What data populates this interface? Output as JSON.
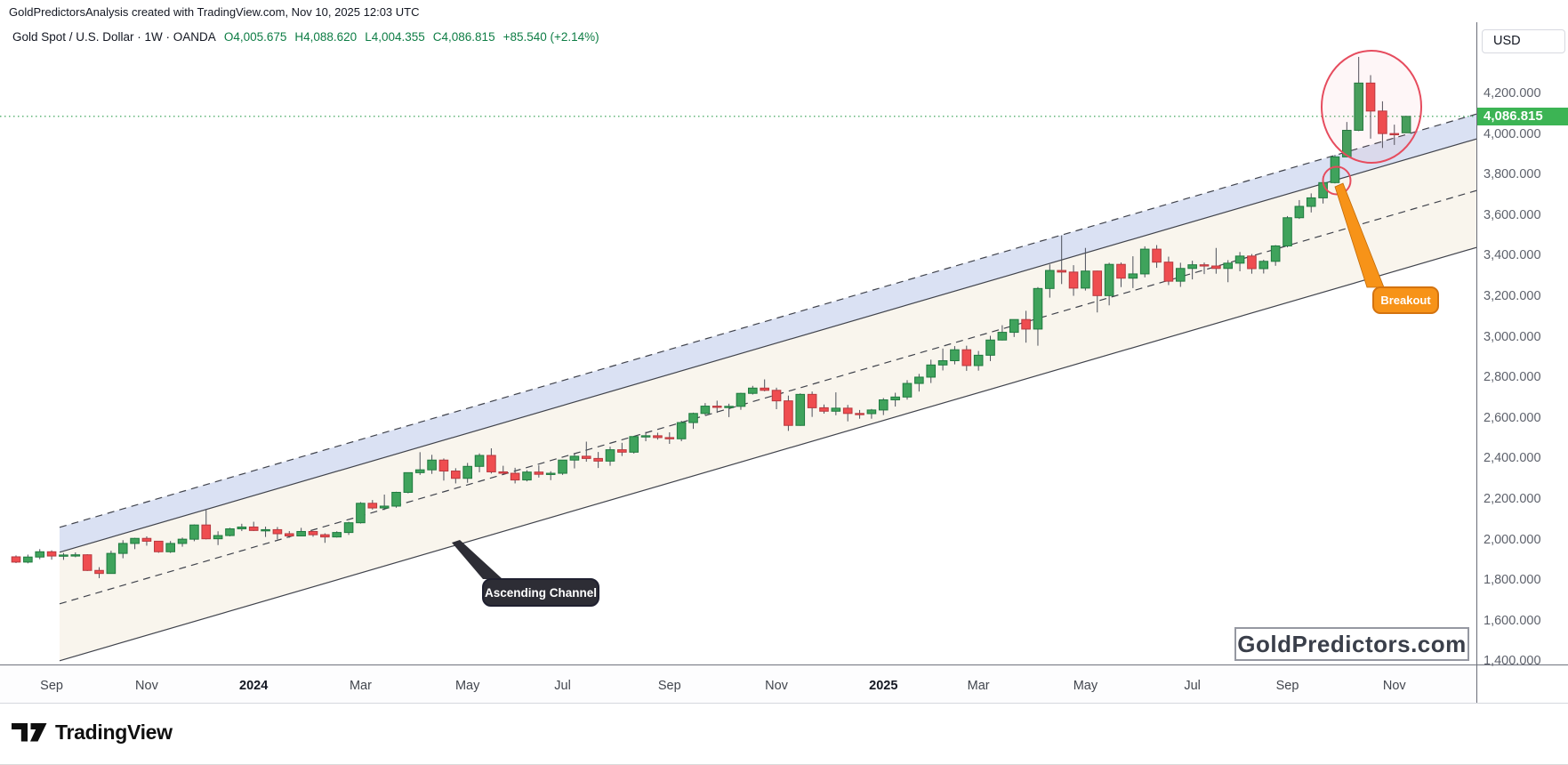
{
  "attribution": "GoldPredictorsAnalysis created with TradingView.com, Nov 10, 2025 12:03 UTC",
  "legend": {
    "symbol_line": "Gold Spot / U.S. Dollar · 1W · OANDA",
    "open": "O4,005.675",
    "high": "H4,088.620",
    "low": "L4,004.355",
    "close": "C4,086.815",
    "change": "+85.540 (+2.14%)"
  },
  "price_pane": {
    "currency_button": "USD",
    "last_price_label": "4,086.815",
    "last_price_color": "#3cb454",
    "labels": [
      "4,200.000",
      "4,000.000",
      "3,800.000",
      "3,600.000",
      "3,400.000",
      "3,200.000",
      "3,000.000",
      "2,800.000",
      "2,600.000",
      "2,400.000",
      "2,200.000",
      "2,000.000",
      "1,800.000",
      "1,600.000",
      "1,400.000"
    ]
  },
  "annotations": {
    "breakout_label": "Breakout",
    "ascending_label": "Ascending Channel",
    "watermark": "GoldPredictors.com",
    "circle_color": "#e64c5e",
    "callout_orange": "#f79318",
    "callout_dark": "#2d2d35"
  },
  "footer": {
    "brand": "TradingView"
  },
  "chart_data": {
    "type": "candlestick",
    "title": "Gold Spot / U.S. Dollar",
    "interval": "1W",
    "exchange": "OANDA",
    "currency": "USD",
    "note": "weekly candles, mid-Aug 2023 to Nov 10 2025, format [open,high,low,close] USD/oz",
    "current": {
      "open": 4005.675,
      "high": 4088.62,
      "low": 4004.355,
      "close": 4086.815,
      "change": 85.54,
      "change_pct": 2.14
    },
    "up_color": "#3fa35c",
    "up_border": "#1f7a3f",
    "down_color": "#ef4d50",
    "down_border": "#b8383f",
    "wick_color": "#4c505a",
    "dotted_price_line": {
      "price": 4086.815,
      "color": "#2f9e4f"
    },
    "price_axis": {
      "min": 1400,
      "max": 4200,
      "step": 200
    },
    "time_axis_labels": [
      {
        "label": "Sep",
        "candle_index": 3,
        "bold": false
      },
      {
        "label": "Nov",
        "candle_index": 11,
        "bold": false
      },
      {
        "label": "2024",
        "candle_index": 20,
        "bold": true
      },
      {
        "label": "Mar",
        "candle_index": 29,
        "bold": false
      },
      {
        "label": "May",
        "candle_index": 38,
        "bold": false
      },
      {
        "label": "Jul",
        "candle_index": 46,
        "bold": false
      },
      {
        "label": "Sep",
        "candle_index": 55,
        "bold": false
      },
      {
        "label": "Nov",
        "candle_index": 64,
        "bold": false
      },
      {
        "label": "2025",
        "candle_index": 73,
        "bold": true
      },
      {
        "label": "Mar",
        "candle_index": 81,
        "bold": false
      },
      {
        "label": "May",
        "candle_index": 90,
        "bold": false
      },
      {
        "label": "Jul",
        "candle_index": 99,
        "bold": false
      },
      {
        "label": "Sep",
        "candle_index": 107,
        "bold": false
      },
      {
        "label": "Nov",
        "candle_index": 116,
        "bold": false
      }
    ],
    "trend_channel": {
      "fill_interior": "rgba(241,232,214,0.45)",
      "fill_band": "rgba(173,189,229,0.45)",
      "line_color": "#40434c",
      "lines": [
        {
          "name": "upper-dashed",
          "style": "dashed",
          "p_start": 2060.5,
          "p_end": 4098.2
        },
        {
          "name": "upper-solid",
          "style": "solid",
          "p_start": 1937.7,
          "p_end": 3975.4
        },
        {
          "name": "mid-dashed",
          "style": "dashed",
          "p_start": 1683.3,
          "p_end": 3721.0
        },
        {
          "name": "lower-solid",
          "style": "solid",
          "p_start": 1402.6,
          "p_end": 3440.3
        }
      ]
    },
    "candles": [
      [
        1915,
        1922,
        1884,
        1889
      ],
      [
        1889,
        1926,
        1883,
        1914
      ],
      [
        1914,
        1953,
        1903,
        1940
      ],
      [
        1940,
        1947,
        1901,
        1919
      ],
      [
        1919,
        1934,
        1900,
        1924
      ],
      [
        1924,
        1937,
        1913,
        1925
      ],
      [
        1925,
        1928,
        1845,
        1848
      ],
      [
        1848,
        1864,
        1810,
        1833
      ],
      [
        1833,
        1945,
        1832,
        1932
      ],
      [
        1932,
        1997,
        1908,
        1981
      ],
      [
        1981,
        2009,
        1953,
        2006
      ],
      [
        2006,
        2016,
        1970,
        1992
      ],
      [
        1992,
        1993,
        1935,
        1940
      ],
      [
        1940,
        1993,
        1934,
        1981
      ],
      [
        1981,
        2010,
        1965,
        2002
      ],
      [
        2002,
        2075,
        1992,
        2072
      ],
      [
        2072,
        2146,
        2001,
        2004
      ],
      [
        2004,
        2041,
        1973,
        2020
      ],
      [
        2020,
        2058,
        2016,
        2053
      ],
      [
        2053,
        2078,
        2042,
        2062
      ],
      [
        2062,
        2088,
        2042,
        2045
      ],
      [
        2045,
        2064,
        2013,
        2049
      ],
      [
        2049,
        2062,
        2001,
        2029
      ],
      [
        2029,
        2042,
        2009,
        2018
      ],
      [
        2018,
        2058,
        2016,
        2040
      ],
      [
        2040,
        2042,
        2014,
        2024
      ],
      [
        2024,
        2031,
        1984,
        2013
      ],
      [
        2013,
        2041,
        2010,
        2035
      ],
      [
        2035,
        2088,
        2023,
        2083
      ],
      [
        2083,
        2185,
        2079,
        2179
      ],
      [
        2179,
        2195,
        2148,
        2156
      ],
      [
        2156,
        2222,
        2146,
        2165
      ],
      [
        2165,
        2236,
        2157,
        2233
      ],
      [
        2233,
        2331,
        2228,
        2330
      ],
      [
        2330,
        2431,
        2319,
        2344
      ],
      [
        2344,
        2418,
        2324,
        2392
      ],
      [
        2392,
        2400,
        2291,
        2338
      ],
      [
        2338,
        2352,
        2277,
        2302
      ],
      [
        2302,
        2378,
        2280,
        2361
      ],
      [
        2361,
        2425,
        2332,
        2415
      ],
      [
        2415,
        2450,
        2326,
        2334
      ],
      [
        2334,
        2364,
        2322,
        2327
      ],
      [
        2327,
        2354,
        2277,
        2294
      ],
      [
        2294,
        2342,
        2287,
        2333
      ],
      [
        2333,
        2366,
        2306,
        2322
      ],
      [
        2322,
        2337,
        2293,
        2327
      ],
      [
        2327,
        2393,
        2319,
        2392
      ],
      [
        2392,
        2424,
        2351,
        2411
      ],
      [
        2411,
        2483,
        2384,
        2400
      ],
      [
        2400,
        2432,
        2353,
        2387
      ],
      [
        2387,
        2458,
        2364,
        2443
      ],
      [
        2443,
        2477,
        2412,
        2431
      ],
      [
        2431,
        2510,
        2424,
        2508
      ],
      [
        2508,
        2531,
        2485,
        2512
      ],
      [
        2512,
        2527,
        2493,
        2503
      ],
      [
        2503,
        2529,
        2472,
        2497
      ],
      [
        2497,
        2586,
        2485,
        2577
      ],
      [
        2577,
        2626,
        2546,
        2622
      ],
      [
        2622,
        2673,
        2614,
        2658
      ],
      [
        2658,
        2685,
        2625,
        2654
      ],
      [
        2654,
        2670,
        2604,
        2657
      ],
      [
        2657,
        2724,
        2640,
        2721
      ],
      [
        2721,
        2758,
        2715,
        2747
      ],
      [
        2747,
        2790,
        2731,
        2736
      ],
      [
        2736,
        2749,
        2643,
        2684
      ],
      [
        2684,
        2710,
        2536,
        2563
      ],
      [
        2563,
        2721,
        2561,
        2716
      ],
      [
        2716,
        2730,
        2605,
        2650
      ],
      [
        2650,
        2666,
        2621,
        2633
      ],
      [
        2633,
        2726,
        2613,
        2648
      ],
      [
        2648,
        2664,
        2583,
        2622
      ],
      [
        2622,
        2639,
        2596,
        2621
      ],
      [
        2621,
        2644,
        2596,
        2639
      ],
      [
        2639,
        2698,
        2614,
        2689
      ],
      [
        2689,
        2724,
        2656,
        2703
      ],
      [
        2703,
        2786,
        2690,
        2770
      ],
      [
        2770,
        2817,
        2730,
        2801
      ],
      [
        2801,
        2887,
        2772,
        2861
      ],
      [
        2861,
        2942,
        2834,
        2882
      ],
      [
        2882,
        2954,
        2864,
        2936
      ],
      [
        2936,
        2956,
        2832,
        2858
      ],
      [
        2858,
        2930,
        2833,
        2909
      ],
      [
        2909,
        3005,
        2880,
        2984
      ],
      [
        2984,
        3057,
        2982,
        3022
      ],
      [
        3022,
        3086,
        2999,
        3085
      ],
      [
        3085,
        3128,
        2971,
        3038
      ],
      [
        3038,
        3245,
        2956,
        3238
      ],
      [
        3238,
        3357,
        3193,
        3327
      ],
      [
        3327,
        3500,
        3260,
        3319
      ],
      [
        3319,
        3353,
        3202,
        3240
      ],
      [
        3240,
        3438,
        3228,
        3324
      ],
      [
        3324,
        3326,
        3120,
        3203
      ],
      [
        3203,
        3365,
        3155,
        3357
      ],
      [
        3357,
        3366,
        3245,
        3289
      ],
      [
        3289,
        3397,
        3240,
        3310
      ],
      [
        3310,
        3446,
        3293,
        3432
      ],
      [
        3432,
        3452,
        3340,
        3368
      ],
      [
        3368,
        3395,
        3255,
        3274
      ],
      [
        3274,
        3365,
        3246,
        3337
      ],
      [
        3337,
        3375,
        3283,
        3355
      ],
      [
        3355,
        3366,
        3309,
        3349
      ],
      [
        3349,
        3438,
        3311,
        3337
      ],
      [
        3337,
        3378,
        3269,
        3363
      ],
      [
        3363,
        3418,
        3323,
        3398
      ],
      [
        3398,
        3408,
        3311,
        3336
      ],
      [
        3336,
        3380,
        3312,
        3372
      ],
      [
        3372,
        3452,
        3350,
        3448
      ],
      [
        3448,
        3595,
        3441,
        3587
      ],
      [
        3587,
        3674,
        3581,
        3643
      ],
      [
        3643,
        3707,
        3613,
        3685
      ],
      [
        3685,
        3791,
        3657,
        3760
      ],
      [
        3760,
        3897,
        3756,
        3887
      ],
      [
        3887,
        4059,
        3886,
        4018
      ],
      [
        4018,
        4380,
        4014,
        4251
      ],
      [
        4251,
        4290,
        3977,
        4113
      ],
      [
        4113,
        4161,
        3931,
        4002
      ],
      [
        4002,
        4046,
        3946,
        4001
      ],
      [
        4005.675,
        4088.62,
        4004.355,
        4086.815
      ]
    ]
  }
}
